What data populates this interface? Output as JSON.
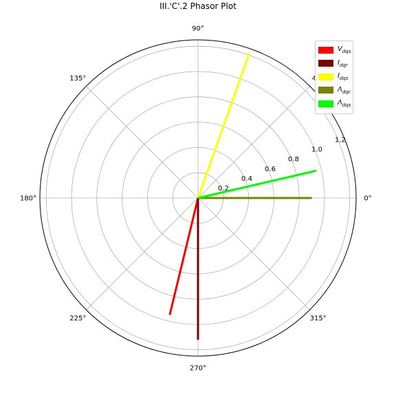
{
  "chart_data": {
    "type": "polar",
    "title": "III.'C'.2 Phasor Plot",
    "angle_ticks": [
      "0°",
      "45°",
      "90°",
      "135°",
      "180°",
      "225°",
      "270°",
      "315°"
    ],
    "radial_ticks": [
      "0.2",
      "0.4",
      "0.6",
      "0.8",
      "1.0",
      "1.2"
    ],
    "rlim": [
      0,
      1.25
    ],
    "grid": true,
    "legend_position": "top-right",
    "series": [
      {
        "symbol": "V",
        "subscript": "dqs",
        "color": "#ff0000",
        "magnitude": 0.95,
        "angle_deg": 256.4
      },
      {
        "symbol": "I",
        "subscript": "dqr",
        "color": "#800000",
        "magnitude": 1.12,
        "angle_deg": 270
      },
      {
        "symbol": "I",
        "subscript": "dqs",
        "color": "#ffff00",
        "magnitude": 1.22,
        "angle_deg": 70.5
      },
      {
        "symbol": "Λ",
        "subscript": "dqr",
        "color": "#808000",
        "magnitude": 0.9,
        "angle_deg": 0
      },
      {
        "symbol": "Λ",
        "subscript": "dqs",
        "color": "#00ff00",
        "magnitude": 0.96,
        "angle_deg": 13
      }
    ]
  }
}
